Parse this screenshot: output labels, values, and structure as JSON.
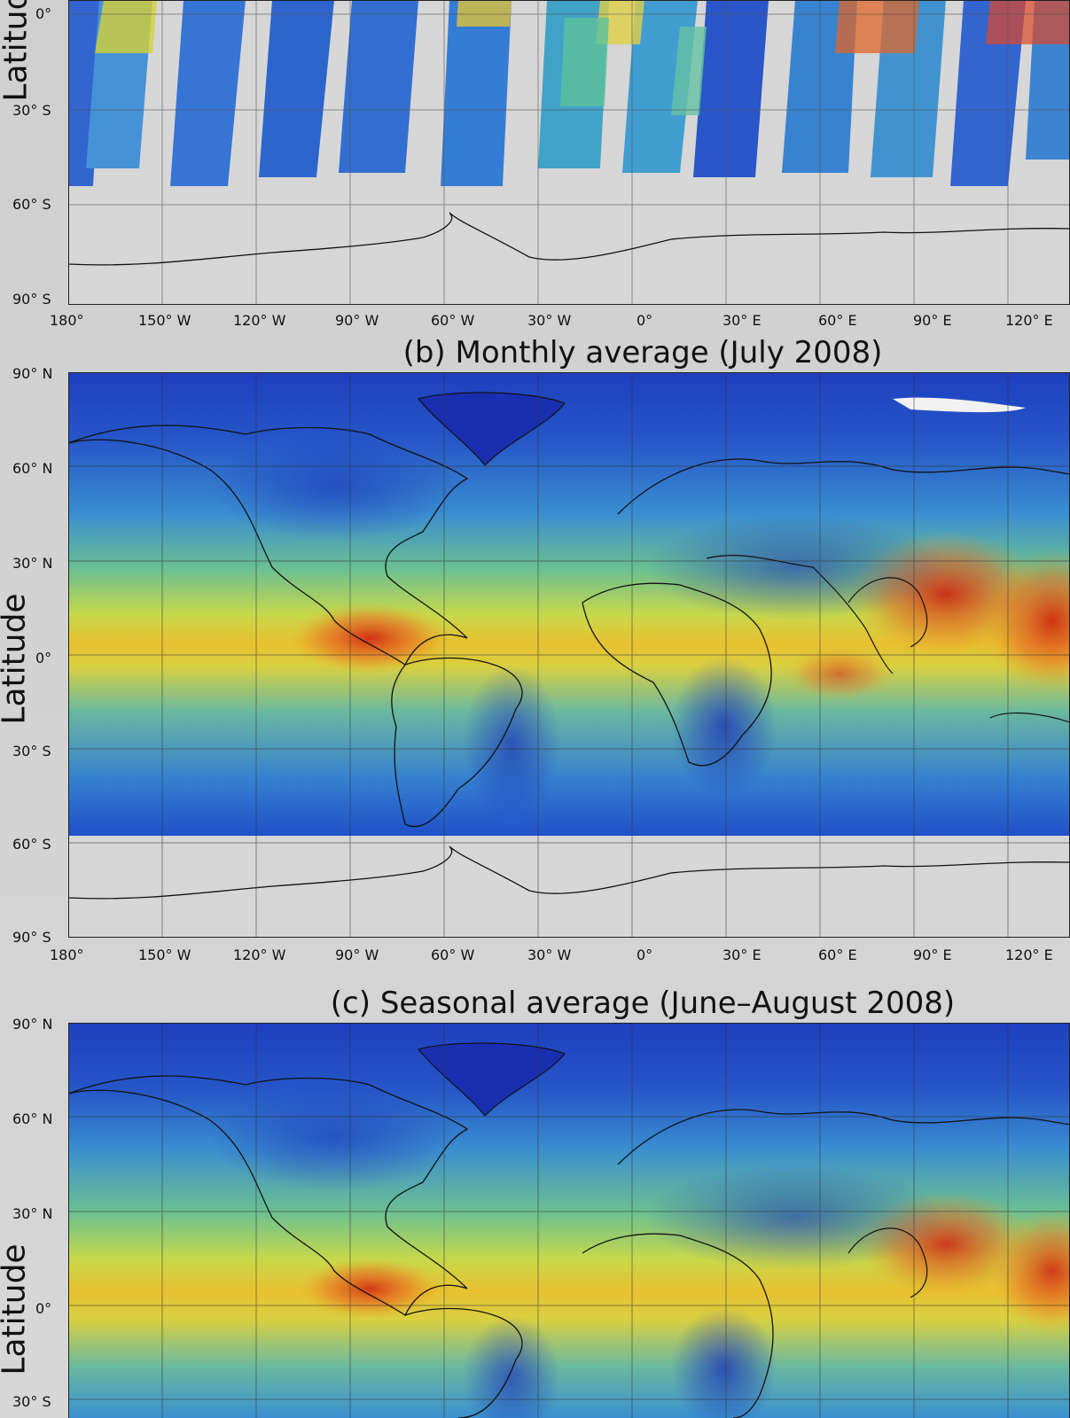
{
  "panels": [
    {
      "id": "a",
      "title": "",
      "ylabel": "Latitude",
      "lat_ticks": [
        "0°",
        "30° S",
        "60° S",
        "90° S"
      ],
      "lon_ticks": [
        "180°",
        "150° W",
        "120° W",
        "90° W",
        "60° W",
        "30° W",
        "0°",
        "30° E",
        "60° E",
        "90° E",
        "120° E"
      ],
      "kind": "swaths"
    },
    {
      "id": "b",
      "title": "(b) Monthly average (July 2008)",
      "ylabel": "Latitude",
      "lat_ticks": [
        "90° N",
        "60° N",
        "30° N",
        "0°",
        "30° S",
        "60° S",
        "90° S"
      ],
      "lon_ticks": [
        "180°",
        "150° W",
        "120° W",
        "90° W",
        "60° W",
        "30° W",
        "0°",
        "30° E",
        "60° E",
        "90° E",
        "120° E"
      ],
      "kind": "full"
    },
    {
      "id": "c",
      "title": "(c) Seasonal average (June–August 2008)",
      "ylabel": "Latitude",
      "lat_ticks": [
        "90° N",
        "60° N",
        "30° N",
        "0°",
        "30° S"
      ],
      "lon_ticks": [],
      "kind": "full"
    }
  ],
  "colors": {
    "background": "#d4d4d4",
    "low": "#1e40c8",
    "mid": "#f0e020",
    "high": "#d02010"
  }
}
